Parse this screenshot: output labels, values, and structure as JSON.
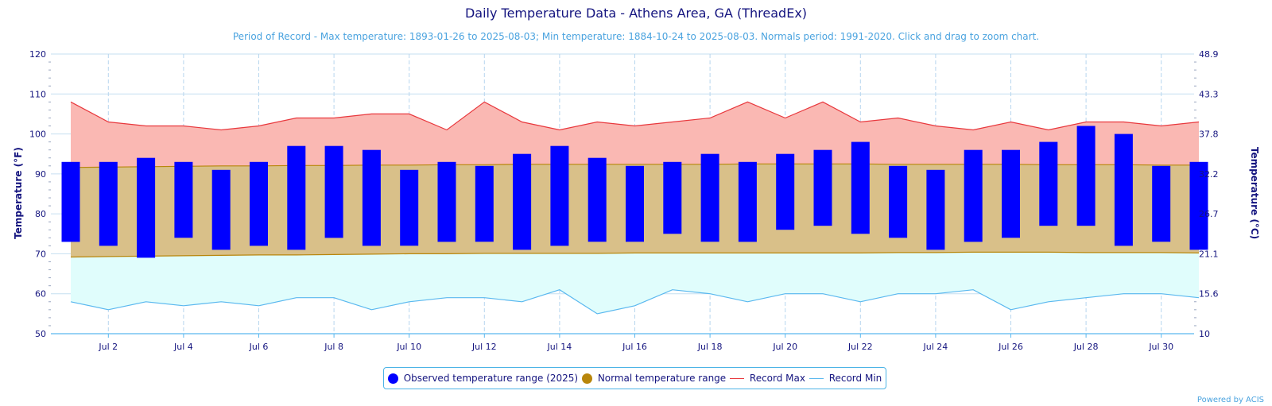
{
  "chart_data": {
    "type": "bar",
    "title": "Daily Temperature Data - Athens Area, GA (ThreadEx)",
    "subtitle": "Period of Record - Max temperature: 1893-01-26 to 2025-08-03; Min temperature: 1884-10-24 to 2025-08-03. Normals period: 1991-2020. Click and drag to zoom chart.",
    "ylabel": "Temperature (°F)",
    "ylabel_right": "Temperature (°C)",
    "ylim": [
      50,
      120
    ],
    "yticks": [
      50,
      60,
      70,
      80,
      90,
      100,
      110,
      120
    ],
    "yticks_right": [
      "10",
      "15.6",
      "21.1",
      "26.7",
      "32.2",
      "37.8",
      "43.3",
      "48.9"
    ],
    "days": [
      1,
      2,
      3,
      4,
      5,
      6,
      7,
      8,
      9,
      10,
      11,
      12,
      13,
      14,
      15,
      16,
      17,
      18,
      19,
      20,
      21,
      22,
      23,
      24,
      25,
      26,
      27,
      28,
      29,
      30,
      31
    ],
    "xtick_labels": [
      "Jul 2",
      "Jul 4",
      "Jul 6",
      "Jul 8",
      "Jul 10",
      "Jul 12",
      "Jul 14",
      "Jul 16",
      "Jul 18",
      "Jul 20",
      "Jul 22",
      "Jul 24",
      "Jul 26",
      "Jul 28",
      "Jul 30"
    ],
    "xtick_days": [
      2,
      4,
      6,
      8,
      10,
      12,
      14,
      16,
      18,
      20,
      22,
      24,
      26,
      28,
      30
    ],
    "series": [
      {
        "name": "Observed temperature range (2025)",
        "kind": "range-bar",
        "color": "#0000ff",
        "low": [
          73,
          72,
          69,
          74,
          71,
          72,
          71,
          74,
          72,
          72,
          73,
          73,
          71,
          72,
          73,
          73,
          75,
          73,
          73,
          76,
          77,
          75,
          74,
          71,
          73,
          74,
          77,
          77,
          72,
          73,
          71
        ],
        "high": [
          93,
          93,
          94,
          93,
          91,
          93,
          97,
          97,
          96,
          91,
          93,
          92,
          95,
          97,
          94,
          92,
          93,
          95,
          93,
          95,
          96,
          98,
          92,
          91,
          96,
          96,
          98,
          102,
          100,
          92,
          93
        ]
      },
      {
        "name": "Normal temperature range",
        "kind": "range-area",
        "color": "#b8860b",
        "fill": "#d9c089",
        "low": [
          69.2,
          69.3,
          69.4,
          69.5,
          69.6,
          69.7,
          69.7,
          69.8,
          69.9,
          70.0,
          70.0,
          70.1,
          70.1,
          70.1,
          70.1,
          70.2,
          70.2,
          70.2,
          70.2,
          70.2,
          70.2,
          70.2,
          70.3,
          70.3,
          70.4,
          70.4,
          70.4,
          70.3,
          70.3,
          70.3,
          70.2
        ],
        "high": [
          91.6,
          91.7,
          91.8,
          91.9,
          92.0,
          92.0,
          92.1,
          92.1,
          92.2,
          92.2,
          92.3,
          92.3,
          92.4,
          92.4,
          92.4,
          92.4,
          92.4,
          92.4,
          92.5,
          92.5,
          92.5,
          92.5,
          92.4,
          92.4,
          92.4,
          92.4,
          92.3,
          92.3,
          92.3,
          92.2,
          92.2
        ]
      },
      {
        "name": "Record Max",
        "kind": "line",
        "color": "#e8383d",
        "fill": "#fab8b3",
        "values": [
          108,
          103,
          102,
          102,
          101,
          102,
          104,
          104,
          105,
          105,
          101,
          108,
          103,
          101,
          103,
          102,
          103,
          104,
          108,
          104,
          108,
          103,
          104,
          102,
          101,
          103,
          101,
          103,
          103,
          102,
          103
        ]
      },
      {
        "name": "Record Min",
        "kind": "line",
        "color": "#5ab8ef",
        "fill": "#e0fdfc",
        "values": [
          58,
          56,
          58,
          57,
          58,
          57,
          59,
          59,
          56,
          58,
          59,
          59,
          58,
          61,
          55,
          57,
          61,
          60,
          58,
          60,
          60,
          58,
          60,
          60,
          61,
          56,
          58,
          59,
          60,
          60,
          59
        ]
      }
    ],
    "grid": true,
    "legend_position": "bottom-center"
  },
  "legend": {
    "observed_label": "Observed temperature range (2025)",
    "normal_label": "Normal temperature range",
    "record_max_label": "Record Max",
    "record_min_label": "Record Min"
  },
  "credit": "Powered by ACIS",
  "colors": {
    "title": "#14147f",
    "subtitle": "#4aa3df",
    "observed": "#0000ff",
    "normal_fill": "#d9c089",
    "normal_line": "#b8860b",
    "record_max_line": "#e8383d",
    "record_max_fill": "#fab8b3",
    "record_min_line": "#5ab8ef",
    "record_min_fill": "#e0fdfc"
  }
}
